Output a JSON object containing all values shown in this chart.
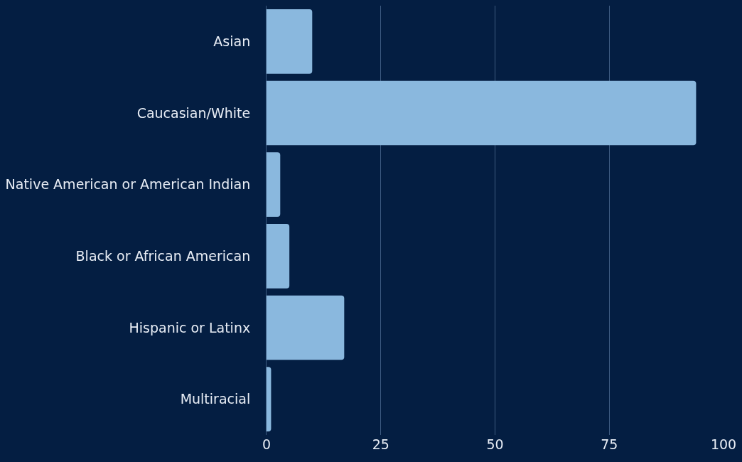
{
  "chart_data": {
    "type": "bar",
    "orientation": "horizontal",
    "categories": [
      "Asian",
      "Caucasian/White",
      "Native American or American Indian",
      "Black or African American",
      "Hispanic or Latinx",
      "Multiracial"
    ],
    "values": [
      10,
      94,
      3,
      5,
      17,
      1
    ],
    "color": "#8ab8de",
    "xlim": [
      0,
      100
    ],
    "xticks": [
      0,
      25,
      50,
      75,
      100
    ],
    "grid": "x",
    "legend": false
  }
}
